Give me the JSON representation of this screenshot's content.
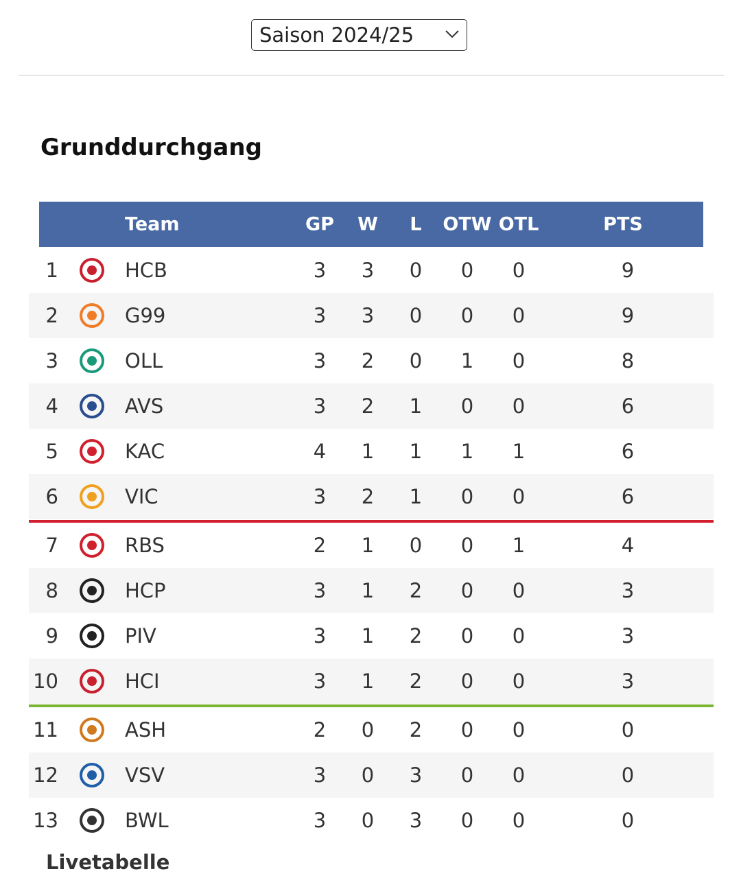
{
  "season_select": "Saison 2024/25",
  "heading": "Grunddurchgang",
  "table": {
    "columns": [
      "Team",
      "GP",
      "W",
      "L",
      "OTW",
      "OTL",
      "PTS"
    ],
    "rows": [
      [
        1,
        "HCB",
        3,
        3,
        0,
        0,
        0,
        9
      ],
      [
        2,
        "G99",
        3,
        3,
        0,
        0,
        0,
        9
      ],
      [
        3,
        "OLL",
        3,
        2,
        0,
        1,
        0,
        8
      ],
      [
        4,
        "AVS",
        3,
        2,
        1,
        0,
        0,
        6
      ],
      [
        5,
        "KAC",
        4,
        1,
        1,
        1,
        1,
        6
      ],
      [
        6,
        "VIC",
        3,
        2,
        1,
        0,
        0,
        6
      ],
      [
        7,
        "RBS",
        2,
        1,
        0,
        0,
        1,
        4
      ],
      [
        8,
        "HCP",
        3,
        1,
        2,
        0,
        0,
        3
      ],
      [
        9,
        "PIV",
        3,
        1,
        2,
        0,
        0,
        3
      ],
      [
        10,
        "HCI",
        3,
        1,
        2,
        0,
        0,
        3
      ],
      [
        11,
        "ASH",
        2,
        0,
        2,
        0,
        0,
        0
      ],
      [
        12,
        "VSV",
        3,
        0,
        3,
        0,
        0,
        0
      ],
      [
        13,
        "BWL",
        3,
        0,
        3,
        0,
        0,
        0
      ]
    ]
  },
  "footer_link": "Livetabelle"
}
